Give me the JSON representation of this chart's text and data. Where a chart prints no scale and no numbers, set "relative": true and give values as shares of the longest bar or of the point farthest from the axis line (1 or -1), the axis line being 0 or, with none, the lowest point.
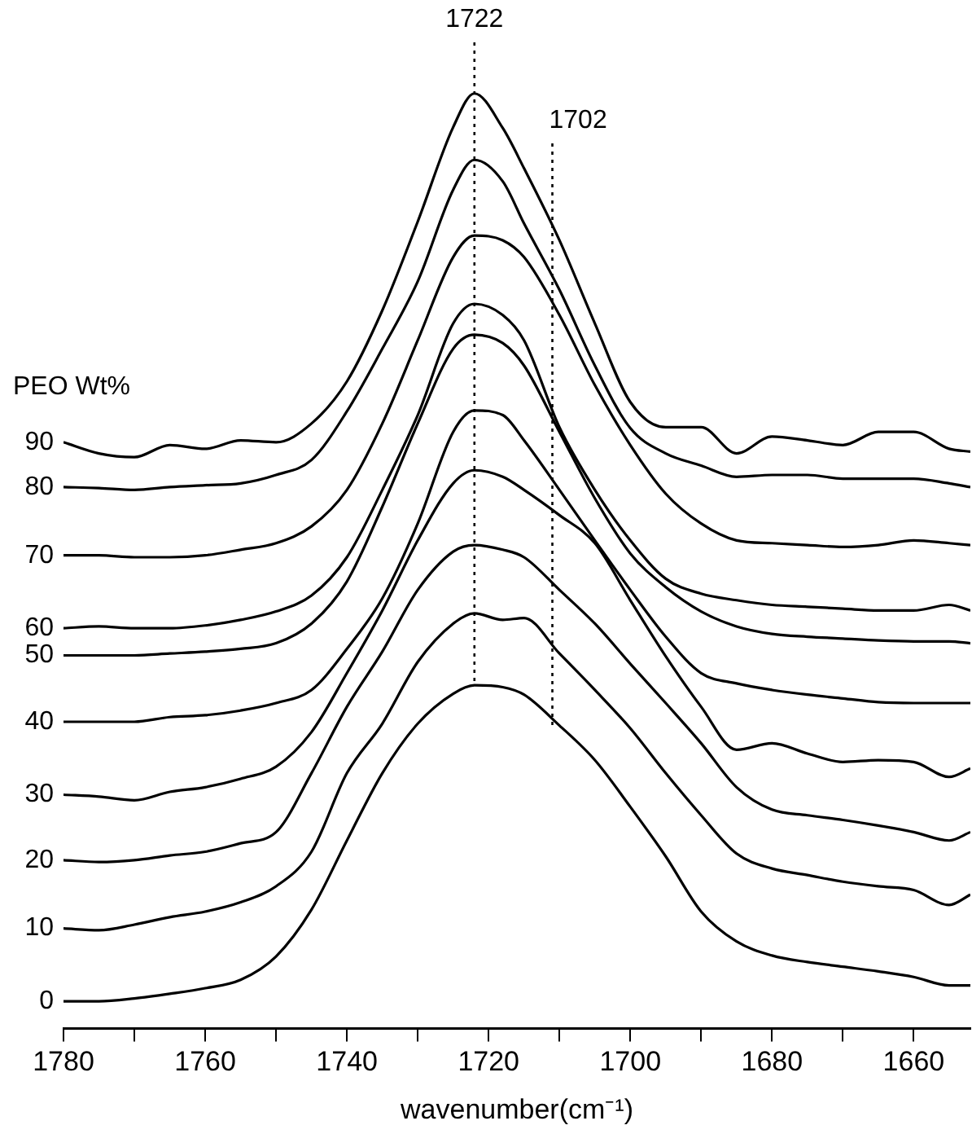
{
  "chart_data": {
    "type": "line",
    "relative": true,
    "xlabel": "wavenumber(cm⁻¹)",
    "legend_title": "PEO Wt%",
    "legend": false,
    "grid": false,
    "marker": "none",
    "line_style": "solid",
    "x": [
      1780,
      1775,
      1770,
      1765,
      1760,
      1755,
      1750,
      1745,
      1740,
      1735,
      1730,
      1725,
      1722,
      1718,
      1715,
      1710,
      1705,
      1700,
      1695,
      1690,
      1685,
      1680,
      1675,
      1670,
      1665,
      1660,
      1655,
      1652
    ],
    "xlim": [
      1780,
      1652
    ],
    "xticks": [
      1780,
      {
        "value": 1770,
        "label": null
      },
      1760,
      {
        "value": 1750,
        "label": null
      },
      1740,
      {
        "value": 1730,
        "label": null
      },
      1720,
      {
        "value": 1710,
        "label": null
      },
      1700,
      {
        "value": 1690,
        "label": null
      },
      1680,
      {
        "value": 1670,
        "label": null
      },
      1660
    ],
    "ref_lines": [
      {
        "axis": "x",
        "value": 1722,
        "label": "1722",
        "line_style": "dotted",
        "color": "#000000"
      },
      {
        "axis": "x",
        "value": 1711,
        "line_style": "dotted",
        "color": "#000000"
      }
    ],
    "annotations": [
      "1702"
    ],
    "series": [
      {
        "name": "0",
        "color": "#000000",
        "values": [
          0.029,
          0.029,
          0.032,
          0.037,
          0.043,
          0.052,
          0.077,
          0.127,
          0.201,
          0.273,
          0.326,
          0.358,
          0.367,
          0.365,
          0.357,
          0.324,
          0.287,
          0.237,
          0.184,
          0.125,
          0.093,
          0.078,
          0.071,
          0.066,
          0.061,
          0.055,
          0.046,
          0.046
        ]
      },
      {
        "name": "10",
        "color": "#000000",
        "values": [
          0.107,
          0.105,
          0.111,
          0.119,
          0.125,
          0.135,
          0.152,
          0.189,
          0.273,
          0.326,
          0.392,
          0.433,
          0.444,
          0.437,
          0.439,
          0.401,
          0.362,
          0.321,
          0.273,
          0.228,
          0.187,
          0.171,
          0.164,
          0.157,
          0.152,
          0.148,
          0.132,
          0.143
        ]
      },
      {
        "name": "20",
        "color": "#000000",
        "values": [
          0.18,
          0.178,
          0.18,
          0.185,
          0.189,
          0.198,
          0.21,
          0.273,
          0.344,
          0.403,
          0.469,
          0.51,
          0.517,
          0.512,
          0.504,
          0.469,
          0.433,
          0.39,
          0.348,
          0.305,
          0.258,
          0.234,
          0.228,
          0.223,
          0.217,
          0.21,
          0.201,
          0.21
        ]
      },
      {
        "name": "30",
        "color": "#000000",
        "values": [
          0.25,
          0.248,
          0.244,
          0.253,
          0.258,
          0.267,
          0.28,
          0.317,
          0.38,
          0.447,
          0.522,
          0.583,
          0.597,
          0.59,
          0.576,
          0.549,
          0.519,
          0.458,
          0.398,
          0.344,
          0.298,
          0.305,
          0.294,
          0.285,
          0.287,
          0.285,
          0.269,
          0.278
        ]
      },
      {
        "name": "40",
        "color": "#000000",
        "values": [
          0.328,
          0.328,
          0.328,
          0.333,
          0.335,
          0.34,
          0.348,
          0.362,
          0.406,
          0.46,
          0.54,
          0.638,
          0.661,
          0.656,
          0.629,
          0.576,
          0.522,
          0.469,
          0.419,
          0.38,
          0.369,
          0.362,
          0.357,
          0.353,
          0.349,
          0.348,
          0.348,
          0.348
        ]
      },
      {
        "name": "50",
        "color": "#000000",
        "values": [
          0.399,
          0.399,
          0.399,
          0.401,
          0.403,
          0.406,
          0.412,
          0.433,
          0.478,
          0.558,
          0.647,
          0.727,
          0.742,
          0.733,
          0.709,
          0.638,
          0.567,
          0.508,
          0.472,
          0.446,
          0.43,
          0.422,
          0.419,
          0.417,
          0.415,
          0.414,
          0.414,
          0.412
        ]
      },
      {
        "name": "60",
        "color": "#000000",
        "values": [
          0.428,
          0.43,
          0.428,
          0.428,
          0.431,
          0.437,
          0.446,
          0.463,
          0.504,
          0.576,
          0.656,
          0.754,
          0.775,
          0.763,
          0.736,
          0.643,
          0.576,
          0.522,
          0.481,
          0.465,
          0.458,
          0.453,
          0.451,
          0.449,
          0.447,
          0.447,
          0.453,
          0.447
        ]
      },
      {
        "name": "70",
        "color": "#000000",
        "values": [
          0.506,
          0.506,
          0.504,
          0.504,
          0.506,
          0.512,
          0.519,
          0.537,
          0.576,
          0.647,
          0.736,
          0.825,
          0.848,
          0.843,
          0.825,
          0.763,
          0.688,
          0.624,
          0.572,
          0.54,
          0.522,
          0.519,
          0.517,
          0.515,
          0.517,
          0.522,
          0.519,
          0.517
        ]
      },
      {
        "name": "80",
        "color": "#000000",
        "values": [
          0.579,
          0.578,
          0.576,
          0.579,
          0.581,
          0.583,
          0.592,
          0.608,
          0.66,
          0.727,
          0.799,
          0.897,
          0.929,
          0.906,
          0.861,
          0.79,
          0.709,
          0.642,
          0.615,
          0.602,
          0.59,
          0.592,
          0.592,
          0.588,
          0.588,
          0.588,
          0.583,
          0.579
        ]
      },
      {
        "name": "90",
        "color": "#000000",
        "values": [
          0.627,
          0.615,
          0.611,
          0.624,
          0.62,
          0.629,
          0.627,
          0.647,
          0.692,
          0.768,
          0.863,
          0.964,
          1,
          0.963,
          0.92,
          0.843,
          0.754,
          0.67,
          0.643,
          0.643,
          0.615,
          0.633,
          0.629,
          0.624,
          0.638,
          0.638,
          0.62,
          0.617
        ]
      }
    ]
  }
}
